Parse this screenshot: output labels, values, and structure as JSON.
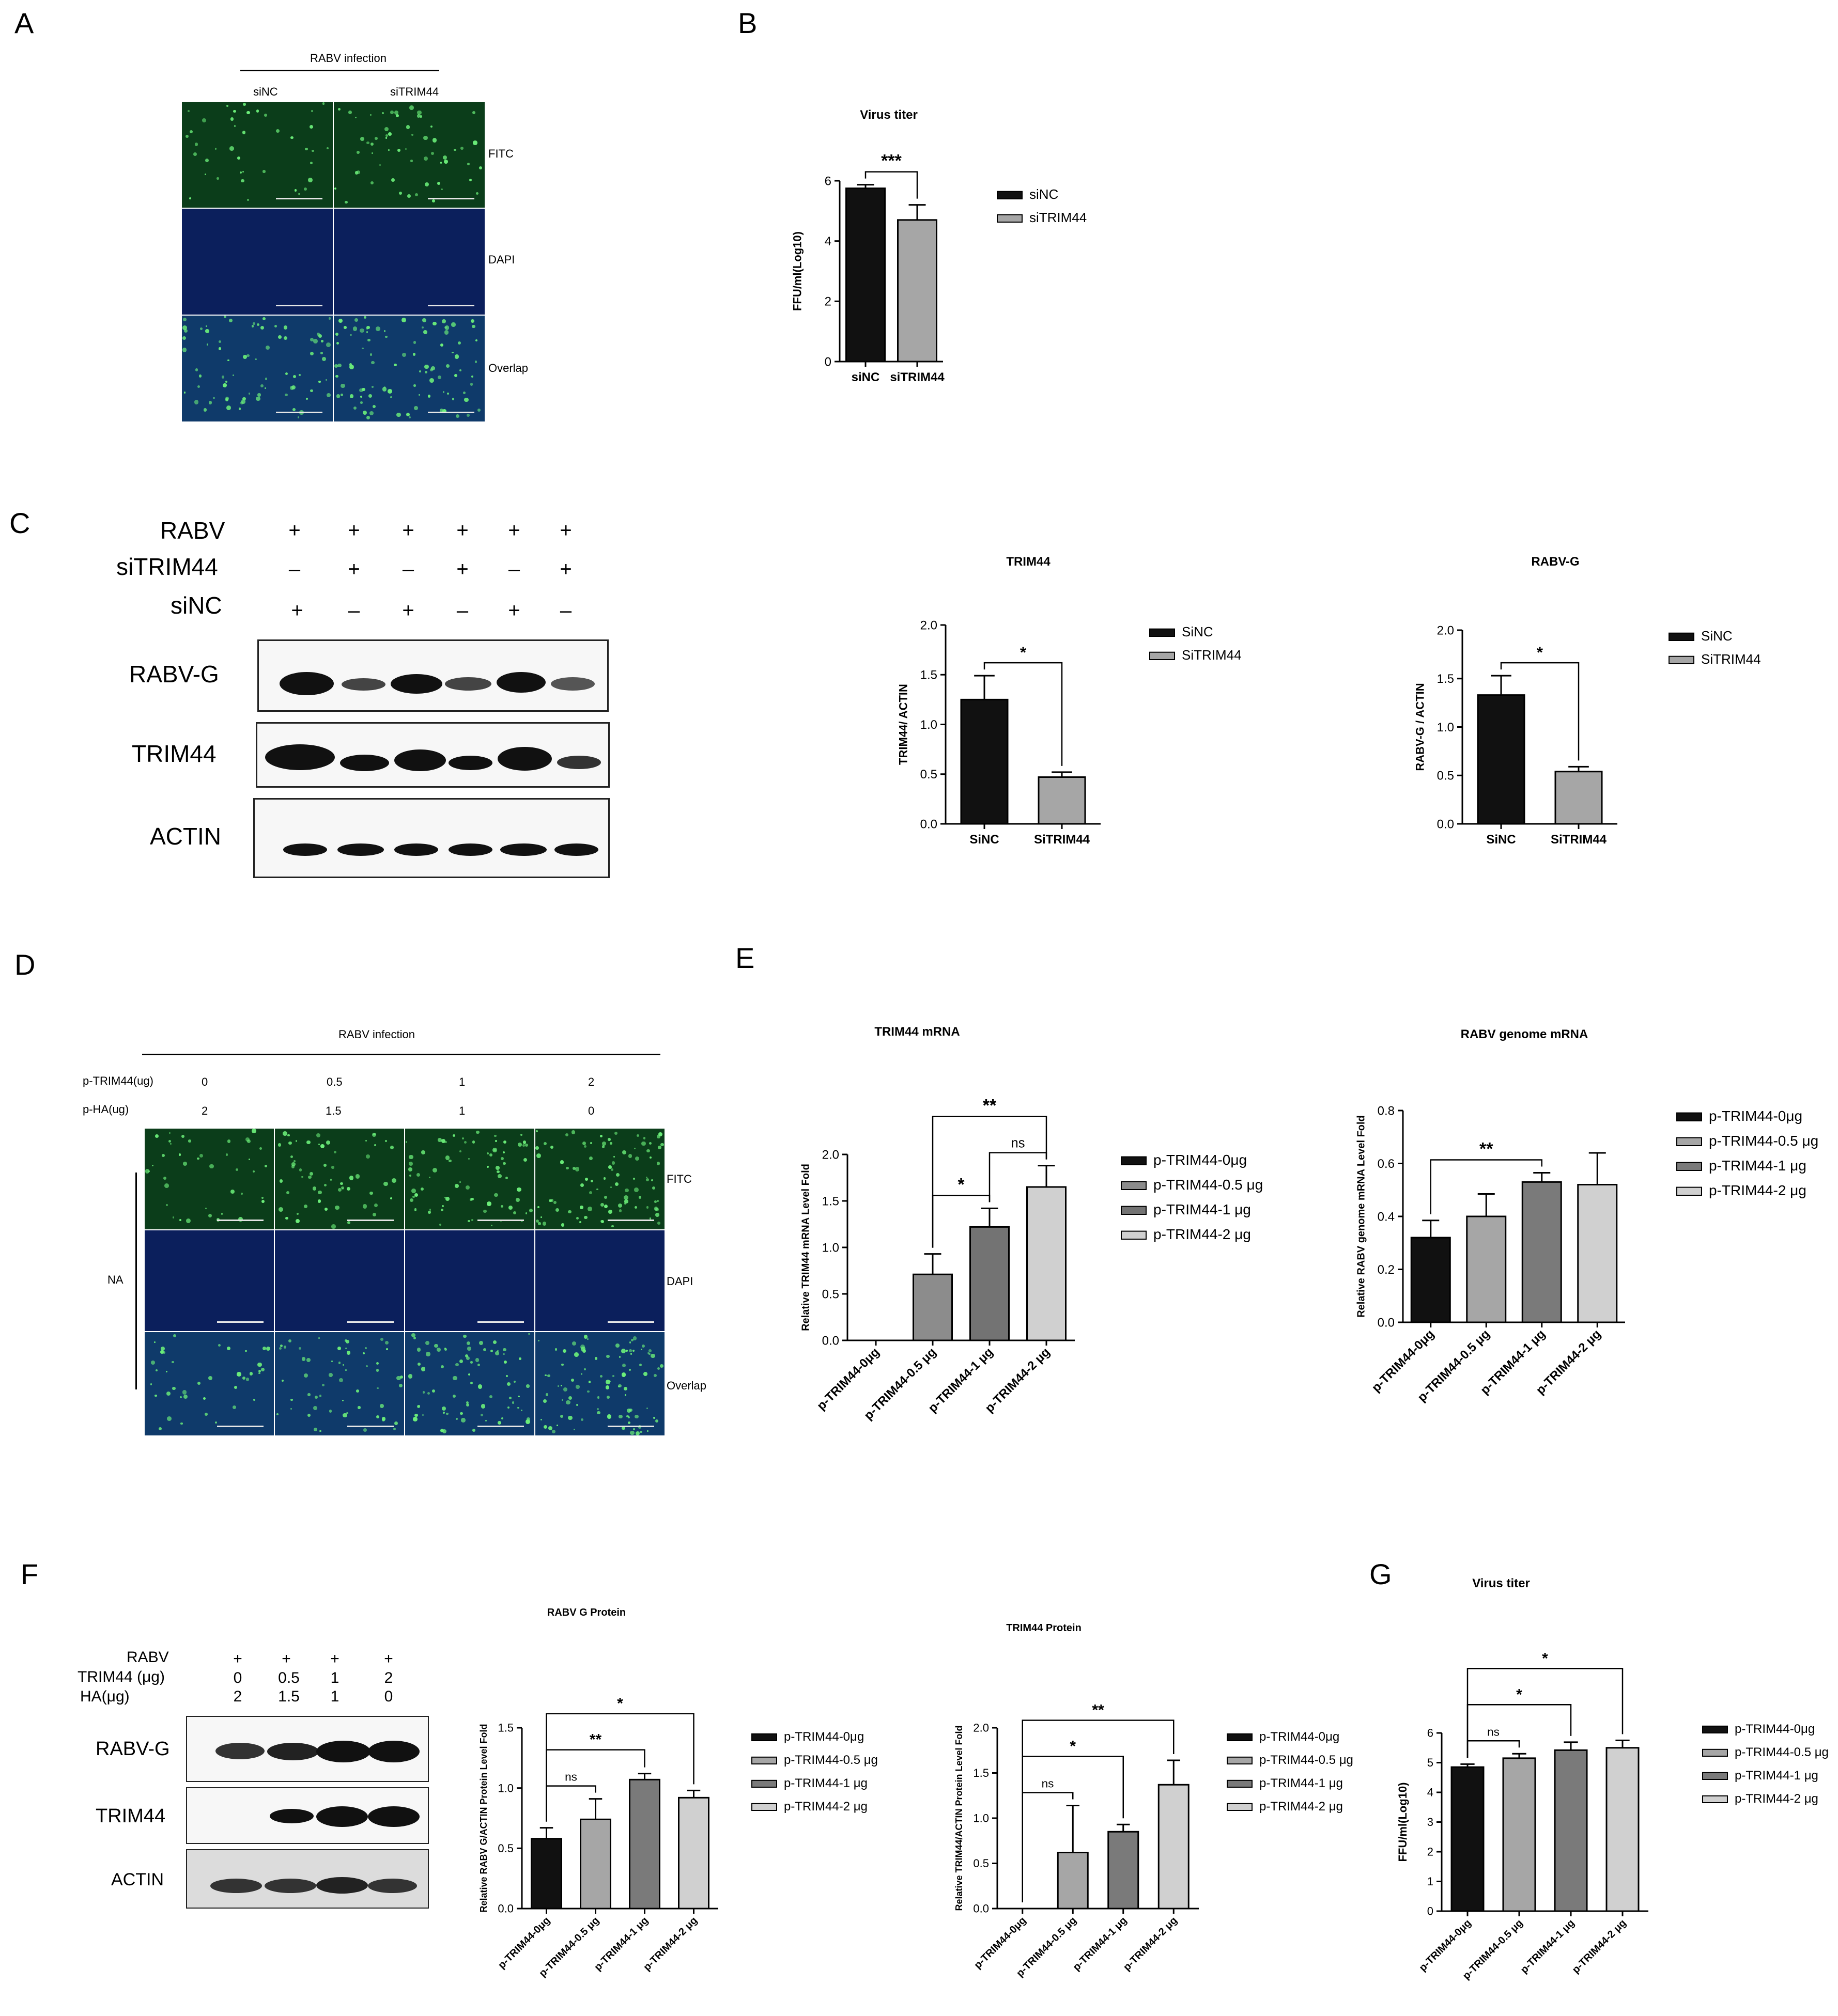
{
  "panel_labels": {
    "A": "A",
    "B": "B",
    "C": "C",
    "D": "D",
    "E": "E",
    "F": "F",
    "G": "G"
  },
  "panelA": {
    "header": "RABV infection",
    "columns": [
      "siNC",
      "siTRIM44"
    ],
    "rows": [
      "FITC",
      "DAPI",
      "Overlap"
    ]
  },
  "panelC_blot": {
    "row_labels": [
      "RABV",
      "siTRIM44",
      "siNC"
    ],
    "signs": {
      "RABV": [
        "+",
        "+",
        "+",
        "+",
        "+",
        "+"
      ],
      "siTRIM44": [
        "–",
        "+",
        "–",
        "+",
        "–",
        "+"
      ],
      "siNC": [
        "+",
        "–",
        "+",
        "–",
        "+",
        "–"
      ]
    },
    "bands": [
      "RABV-G",
      "TRIM44",
      "ACTIN"
    ]
  },
  "panelD": {
    "header": "RABV infection",
    "ptrim_label": "p-TRIM44(ug)",
    "pha_label": "p-HA(ug)",
    "ptrim_values": [
      "0",
      "0.5",
      "1",
      "2"
    ],
    "pha_values": [
      "2",
      "1.5",
      "1",
      "0"
    ],
    "side_label": "NA",
    "rows": [
      "FITC",
      "DAPI",
      "Overlap"
    ]
  },
  "panelF_blot": {
    "row_labels": [
      "RABV",
      "TRIM44 (μg)",
      "HA(μg)"
    ],
    "signs": {
      "RABV": [
        "+",
        "+",
        "+",
        "+"
      ],
      "TRIM44": [
        "0",
        "0.5",
        "1",
        "2"
      ],
      "HA": [
        "2",
        "1.5",
        "1",
        "0"
      ]
    },
    "bands": [
      "RABV-G",
      "TRIM44",
      "ACTIN"
    ]
  },
  "chart_data": [
    {
      "id": "B",
      "type": "bar",
      "title": "Virus titer",
      "ylabel": "FFU/ml(Log10)",
      "categories": [
        "siNC",
        "siTRIM44"
      ],
      "values": [
        5.75,
        4.7
      ],
      "errors": [
        0.12,
        0.5
      ],
      "ylim": [
        0,
        6
      ],
      "yticks": [
        "0",
        "2",
        "4",
        "6"
      ],
      "legend": [
        "siNC",
        "siTRIM44"
      ],
      "colors": [
        "#111111",
        "#a6a6a6"
      ],
      "significance": [
        {
          "from": 0,
          "to": 1,
          "label": "***"
        }
      ]
    },
    {
      "id": "C1",
      "type": "bar",
      "title": "TRIM44",
      "ylabel": "TRIM44/ ACTIN",
      "categories": [
        "SiNC",
        "SiTRIM44"
      ],
      "values": [
        1.25,
        0.47
      ],
      "errors": [
        0.24,
        0.05
      ],
      "ylim": [
        0,
        2.0
      ],
      "yticks": [
        "0.0",
        "0.5",
        "1.0",
        "1.5",
        "2.0"
      ],
      "legend": [
        "SiNC",
        "SiTRIM44"
      ],
      "colors": [
        "#111111",
        "#a6a6a6"
      ],
      "significance": [
        {
          "from": 0,
          "to": 1,
          "label": "*"
        }
      ]
    },
    {
      "id": "C2",
      "type": "bar",
      "title": "RABV-G",
      "ylabel": "RABV-G / ACTIN",
      "categories": [
        "SiNC",
        "SiTRIM44"
      ],
      "values": [
        1.33,
        0.54
      ],
      "errors": [
        0.2,
        0.05
      ],
      "ylim": [
        0,
        2.0
      ],
      "yticks": [
        "0.0",
        "0.5",
        "1.0",
        "1.5",
        "2.0"
      ],
      "legend": [
        "SiNC",
        "SiTRIM44"
      ],
      "colors": [
        "#111111",
        "#a6a6a6"
      ],
      "significance": [
        {
          "from": 0,
          "to": 1,
          "label": "*"
        }
      ]
    },
    {
      "id": "E1",
      "type": "bar",
      "title": "TRIM44 mRNA",
      "ylabel": "Relative TRIM44 mRNA Level Fold",
      "categories": [
        "p-TRIM44-0μg",
        "p-TRIM44-0.5 μg",
        "p-TRIM44-1 μg",
        "p-TRIM44-2 μg"
      ],
      "values": [
        0,
        0.71,
        1.22,
        1.65
      ],
      "errors": [
        0,
        0.22,
        0.2,
        0.23
      ],
      "ylim": [
        0,
        2.0
      ],
      "yticks": [
        "0.0",
        "0.5",
        "1.0",
        "1.5",
        "2.0"
      ],
      "legend": [
        "p-TRIM44-0μg",
        "p-TRIM44-0.5 μg",
        "p-TRIM44-1 μg",
        "p-TRIM44-2 μg"
      ],
      "colors": [
        "#111111",
        "#8c8c8c",
        "#737373",
        "#d0d0d0"
      ],
      "significance": [
        {
          "from": 1,
          "to": 2,
          "label": "*"
        },
        {
          "from": 2,
          "to": 3,
          "label": "ns"
        },
        {
          "from": 1,
          "to": 3,
          "label": "**"
        }
      ]
    },
    {
      "id": "E2",
      "type": "bar",
      "title": "RABV genome mRNA",
      "ylabel": "Relative RABV genome mRNA Level Fold",
      "categories": [
        "p-TRIM44-0μg",
        "p-TRIM44-0.5 μg",
        "p-TRIM44-1 μg",
        "p-TRIM44-2 μg"
      ],
      "values": [
        0.32,
        0.4,
        0.53,
        0.52
      ],
      "errors": [
        0.065,
        0.085,
        0.035,
        0.12
      ],
      "ylim": [
        0,
        0.8
      ],
      "yticks": [
        "0.0",
        "0.2",
        "0.4",
        "0.6",
        "0.8"
      ],
      "legend": [
        "p-TRIM44-0μg",
        "p-TRIM44-0.5 μg",
        "p-TRIM44-1 μg",
        "p-TRIM44-2 μg"
      ],
      "colors": [
        "#111111",
        "#a6a6a6",
        "#7a7a7a",
        "#d0d0d0"
      ],
      "significance": [
        {
          "from": 0,
          "to": 2,
          "label": "**"
        }
      ]
    },
    {
      "id": "F1",
      "type": "bar",
      "title": "RABV G Protein",
      "ylabel": "Relative RABV G/ACTIN Protein Level Fold",
      "categories": [
        "p-TRIM44-0μg",
        "p-TRIM44-0.5 μg",
        "p-TRIM44-1 μg",
        "p-TRIM44-2 μg"
      ],
      "values": [
        0.58,
        0.74,
        1.07,
        0.92
      ],
      "errors": [
        0.09,
        0.17,
        0.05,
        0.06
      ],
      "ylim": [
        0,
        1.5
      ],
      "yticks": [
        "0.0",
        "0.5",
        "1.0",
        "1.5"
      ],
      "legend": [
        "p-TRIM44-0μg",
        "p-TRIM44-0.5 μg",
        "p-TRIM44-1 μg",
        "p-TRIM44-2 μg"
      ],
      "colors": [
        "#111111",
        "#a6a6a6",
        "#7a7a7a",
        "#d0d0d0"
      ],
      "significance": [
        {
          "from": 0,
          "to": 1,
          "label": "ns"
        },
        {
          "from": 0,
          "to": 2,
          "label": "**"
        },
        {
          "from": 0,
          "to": 3,
          "label": "*"
        }
      ]
    },
    {
      "id": "F2",
      "type": "bar",
      "title": "TRIM44 Protein",
      "ylabel": "Relative TRIM44/ACTIN Protein Level Fold",
      "categories": [
        "p-TRIM44-0μg",
        "p-TRIM44-0.5 μg",
        "p-TRIM44-1 μg",
        "p-TRIM44-2 μg"
      ],
      "values": [
        0,
        0.62,
        0.85,
        1.37
      ],
      "errors": [
        0,
        0.52,
        0.08,
        0.27
      ],
      "ylim": [
        0,
        2.0
      ],
      "yticks": [
        "0.0",
        "0.5",
        "1.0",
        "1.5",
        "2.0"
      ],
      "legend": [
        "p-TRIM44-0μg",
        "p-TRIM44-0.5 μg",
        "p-TRIM44-1 μg",
        "p-TRIM44-2 μg"
      ],
      "colors": [
        "#111111",
        "#a6a6a6",
        "#7a7a7a",
        "#d0d0d0"
      ],
      "significance": [
        {
          "from": 0,
          "to": 1,
          "label": "ns"
        },
        {
          "from": 0,
          "to": 2,
          "label": "*"
        },
        {
          "from": 0,
          "to": 3,
          "label": "**"
        }
      ]
    },
    {
      "id": "G",
      "type": "bar",
      "title": "Virus titer",
      "ylabel": "FFU/ml(Log10)",
      "categories": [
        "p-TRIM44-0μg",
        "p-TRIM44-0.5 μg",
        "p-TRIM44-1 μg",
        "p-TRIM44-2 μg"
      ],
      "values": [
        4.85,
        5.15,
        5.42,
        5.5
      ],
      "errors": [
        0.1,
        0.15,
        0.27,
        0.25
      ],
      "ylim": [
        0,
        6
      ],
      "yticks": [
        "0",
        "1",
        "2",
        "3",
        "4",
        "5",
        "6"
      ],
      "legend": [
        "p-TRIM44-0μg",
        "p-TRIM44-0.5 μg",
        "p-TRIM44-1 μg",
        "p-TRIM44-2 μg"
      ],
      "colors": [
        "#111111",
        "#a6a6a6",
        "#7a7a7a",
        "#d0d0d0"
      ],
      "significance": [
        {
          "from": 0,
          "to": 1,
          "label": "ns"
        },
        {
          "from": 0,
          "to": 2,
          "label": "*"
        },
        {
          "from": 0,
          "to": 3,
          "label": "*"
        }
      ]
    }
  ]
}
